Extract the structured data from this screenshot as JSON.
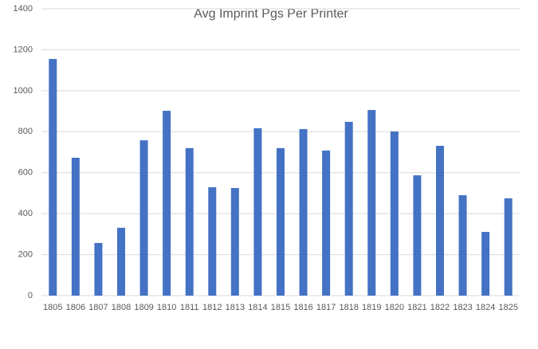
{
  "chart_data": {
    "type": "bar",
    "title": "Avg Imprint Pgs Per Printer",
    "categories": [
      "1805",
      "1806",
      "1807",
      "1808",
      "1809",
      "1810",
      "1811",
      "1812",
      "1813",
      "1814",
      "1815",
      "1816",
      "1817",
      "1818",
      "1819",
      "1820",
      "1821",
      "1822",
      "1823",
      "1824",
      "1825"
    ],
    "values": [
      1155,
      673,
      257,
      331,
      758,
      902,
      720,
      529,
      525,
      817,
      720,
      813,
      708,
      848,
      906,
      801,
      587,
      731,
      490,
      311,
      475
    ],
    "color": "#4472c4",
    "ylim": [
      0,
      1400
    ],
    "yticks": [
      0,
      200,
      400,
      600,
      800,
      1000,
      1200,
      1400
    ],
    "grid": true
  }
}
